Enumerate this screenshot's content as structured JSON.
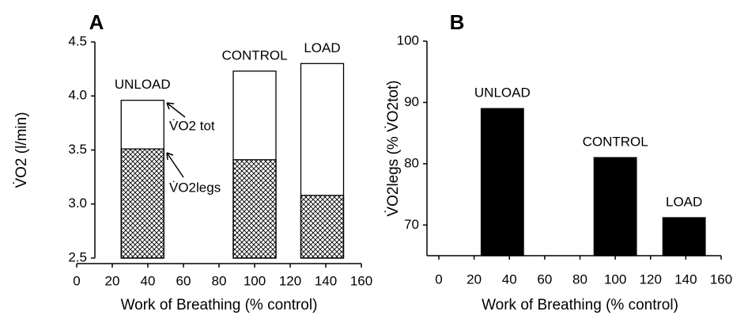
{
  "chart_data": [
    {
      "type": "bar",
      "panel": "A",
      "xlabel": "Work of Breathing (% control)",
      "ylabel": "V̇O2 (l/min)",
      "x": [
        37,
        100,
        138
      ],
      "bar_labels": [
        "UNLOAD",
        "CONTROL",
        "LOAD"
      ],
      "series": [
        {
          "name": "V̇O2 tot",
          "color": "#ffffff",
          "values": [
            3.96,
            4.23,
            4.3
          ]
        },
        {
          "name": "V̇O2legs",
          "color": "#000000",
          "hatch": true,
          "values": [
            3.51,
            3.41,
            3.08
          ]
        }
      ],
      "xlim": [
        0,
        160
      ],
      "xticks": [
        0,
        20,
        40,
        60,
        80,
        100,
        120,
        140,
        160
      ],
      "ylim": [
        2.5,
        4.5
      ],
      "yticks": [
        2.5,
        {
          "value": 3,
          "label": "3.0"
        },
        3.5,
        {
          "value": 4,
          "label": "4.0"
        },
        4.5
      ]
    },
    {
      "type": "bar",
      "panel": "B",
      "xlabel": "Work of Breathing (% control)",
      "ylabel": "V̇O2legs (% V̇O2tot)",
      "x": [
        36,
        100,
        139
      ],
      "bar_labels": [
        "UNLOAD",
        "CONTROL",
        "LOAD"
      ],
      "series": [
        {
          "color": "#000000",
          "values": [
            89,
            81,
            71.2
          ]
        }
      ],
      "xlim": [
        0,
        160
      ],
      "xticks": [
        0,
        20,
        40,
        60,
        80,
        100,
        120,
        140,
        160
      ],
      "ylim": [
        65,
        100
      ],
      "yticks": [
        70,
        80,
        90,
        100
      ]
    }
  ]
}
